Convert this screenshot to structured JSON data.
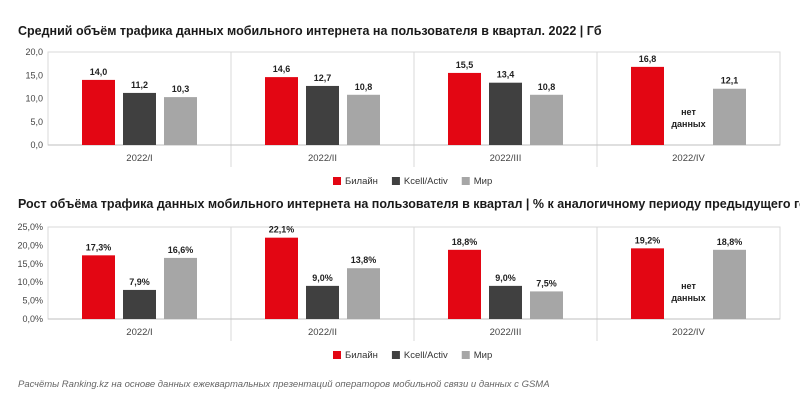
{
  "chart_data": [
    {
      "type": "bar",
      "title": "Средний объём трафика данных мобильного интернета на пользователя в квартал. 2022 | Гб",
      "categories": [
        "2022/I",
        "2022/II",
        "2022/III",
        "2022/IV"
      ],
      "series": [
        {
          "name": "Билайн",
          "color": "#e30613",
          "values": [
            14.0,
            14.6,
            15.5,
            16.8
          ],
          "labels": [
            "14,0",
            "14,6",
            "15,5",
            "16,8"
          ]
        },
        {
          "name": "Kcell/Activ",
          "color": "#404040",
          "values": [
            11.2,
            12.7,
            13.4,
            null
          ],
          "labels": [
            "11,2",
            "12,7",
            "13,4",
            null
          ]
        },
        {
          "name": "Мир",
          "color": "#a6a6a6",
          "values": [
            10.3,
            10.8,
            10.8,
            12.1
          ],
          "labels": [
            "10,3",
            "10,8",
            "10,8",
            "12,1"
          ]
        }
      ],
      "ylim": [
        0,
        20
      ],
      "yticks": [
        0,
        5,
        10,
        15,
        20
      ],
      "ytick_labels": [
        "0,0",
        "5,0",
        "10,0",
        "15,0",
        "20,0"
      ],
      "no_data_label_lines": [
        "нет",
        "данных"
      ],
      "legend_position": "bottom-center"
    },
    {
      "type": "bar",
      "title": "Рост объёма трафика данных мобильного интернета на пользователя в квартал | % к аналогичному периоду предыдущего года",
      "categories": [
        "2022/I",
        "2022/II",
        "2022/III",
        "2022/IV"
      ],
      "series": [
        {
          "name": "Билайн",
          "color": "#e30613",
          "values": [
            17.3,
            22.1,
            18.8,
            19.2
          ],
          "labels": [
            "17,3%",
            "22,1%",
            "18,8%",
            "19,2%"
          ]
        },
        {
          "name": "Kcell/Activ",
          "color": "#404040",
          "values": [
            7.9,
            9.0,
            9.0,
            null
          ],
          "labels": [
            "7,9%",
            "9,0%",
            "9,0%",
            null
          ]
        },
        {
          "name": "Мир",
          "color": "#a6a6a6",
          "values": [
            16.6,
            13.8,
            7.5,
            18.8
          ],
          "labels": [
            "16,6%",
            "13,8%",
            "7,5%",
            "18,8%"
          ]
        }
      ],
      "ylim": [
        0,
        25
      ],
      "yticks": [
        0,
        5,
        10,
        15,
        20,
        25
      ],
      "ytick_labels": [
        "0,0%",
        "5,0%",
        "10,0%",
        "15,0%",
        "20,0%",
        "25,0%"
      ],
      "no_data_label_lines": [
        "нет",
        "данных"
      ],
      "legend_position": "bottom-center"
    }
  ],
  "source_note": "Расчёты Ranking.kz на основе данных ежеквартальных презентаций операторов мобильной связи и данных с GSMA"
}
